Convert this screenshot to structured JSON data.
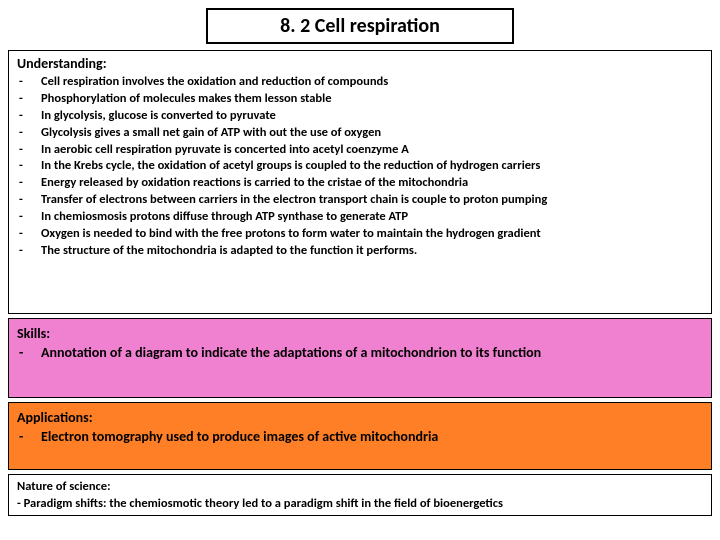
{
  "title": "8. 2 Cell respiration",
  "understanding": {
    "heading": "Understanding:",
    "items": [
      "Cell respiration involves the oxidation and reduction of compounds",
      "Phosphorylation of molecules makes them lesson stable",
      "In glycolysis, glucose is converted to pyruvate",
      "Glycolysis gives a small net gain of ATP with out the use of oxygen",
      "In aerobic cell respiration pyruvate is concerted into acetyl coenzyme A",
      "In the Krebs cycle, the oxidation of acetyl groups is coupled to the reduction of hydrogen carriers",
      "Energy released by oxidation reactions is carried to the cristae of the mitochondria",
      "Transfer of electrons between carriers in the electron transport chain is couple to proton pumping",
      "In chemiosmosis protons diffuse through ATP synthase to generate ATP",
      "Oxygen is needed to bind with the free protons to form water to maintain the hydrogen gradient",
      "The structure of the mitochondria is adapted to the function it performs."
    ]
  },
  "skills": {
    "heading": "Skills:",
    "items": [
      "Annotation of a diagram to indicate the adaptations of a mitochondrion to its function"
    ],
    "background_color": "#f080d0"
  },
  "applications": {
    "heading": "Applications:",
    "items": [
      "Electron tomography used to produce images of active mitochondria"
    ],
    "background_color": "#ff7f27"
  },
  "nature_of_science": {
    "heading": "Nature of science:",
    "text": "- Paradigm shifts: the chemiosmotic theory led to a paradigm shift in the field of bioenergetics"
  },
  "bullet": "-"
}
